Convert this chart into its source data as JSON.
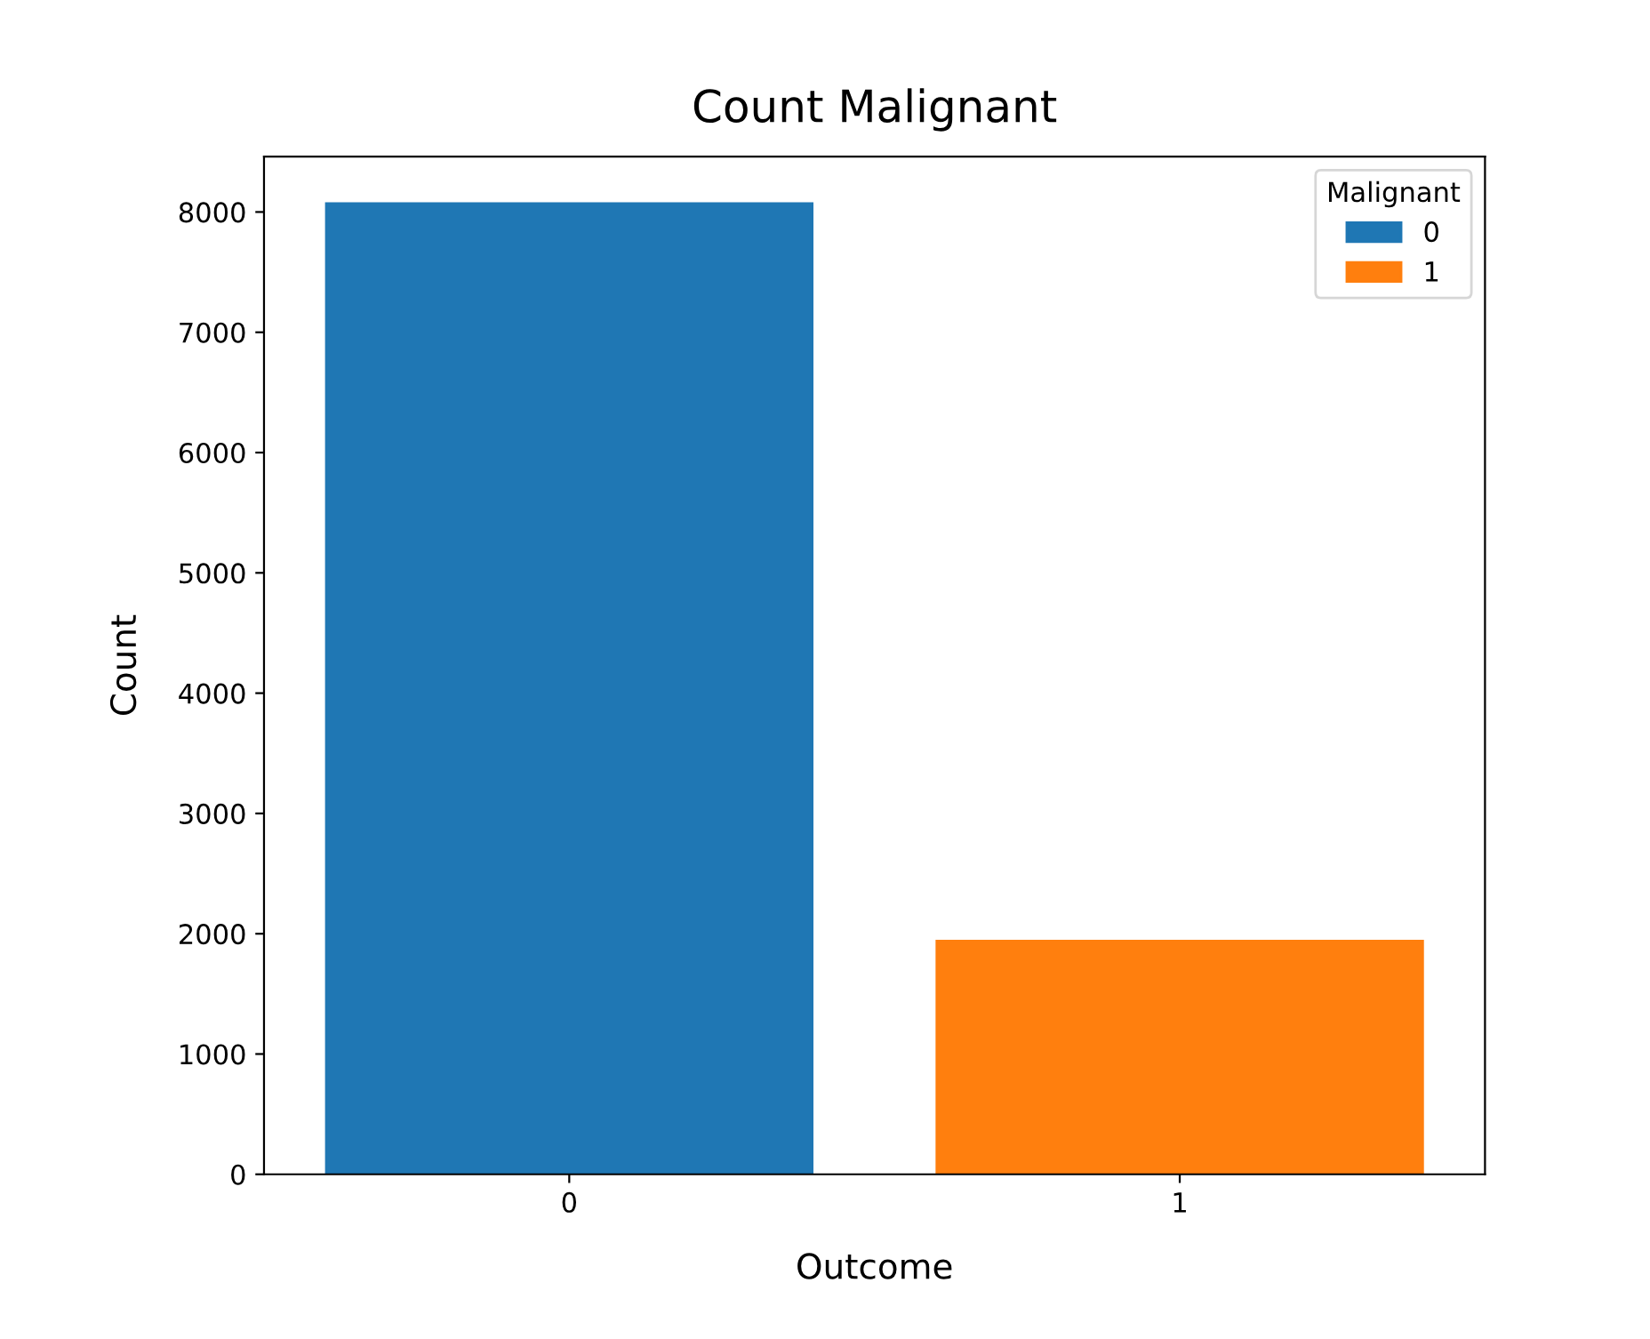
{
  "chart_data": {
    "type": "bar",
    "title": "Count Malignant",
    "xlabel": "Outcome",
    "ylabel": "Count",
    "legend_title": "Malignant",
    "categories": [
      "0",
      "1"
    ],
    "series": [
      {
        "name": "0",
        "color": "#1f77b4",
        "values": [
          8080,
          null
        ]
      },
      {
        "name": "1",
        "color": "#ff7f0e",
        "values": [
          null,
          1950
        ]
      }
    ],
    "ylim": [
      0,
      8460
    ],
    "yticks": [
      0,
      1000,
      2000,
      3000,
      4000,
      5000,
      6000,
      7000,
      8000
    ],
    "grid": false,
    "legend": "top right"
  }
}
